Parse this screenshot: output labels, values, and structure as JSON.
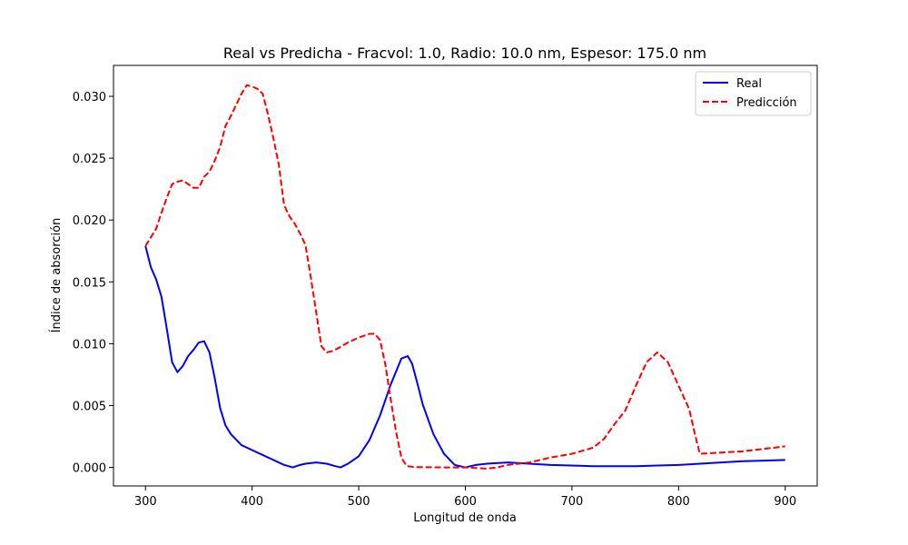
{
  "chart_data": {
    "type": "line",
    "title": "Real vs Predicha - Fracvol: 1.0, Radio: 10.0 nm, Espesor: 175.0 nm",
    "xlabel": "Longitud de onda",
    "ylabel": "Índice de absorción",
    "xlim": [
      270,
      930
    ],
    "ylim": [
      -0.0015,
      0.0325
    ],
    "xticks": [
      300,
      400,
      500,
      600,
      700,
      800,
      900
    ],
    "yticks": [
      0.0,
      0.005,
      0.01,
      0.015,
      0.02,
      0.025,
      0.03
    ],
    "xtick_labels": [
      "300",
      "400",
      "500",
      "600",
      "700",
      "800",
      "900"
    ],
    "ytick_labels": [
      "0.000",
      "0.005",
      "0.010",
      "0.015",
      "0.020",
      "0.025",
      "0.030"
    ],
    "legend_position": "top-right",
    "grid": false,
    "series": [
      {
        "name": "Real",
        "color": "#0000ff",
        "style": "solid",
        "x": [
          300,
          305,
          310,
          315,
          320,
          325,
          330,
          335,
          340,
          345,
          350,
          355,
          360,
          365,
          370,
          375,
          380,
          390,
          400,
          410,
          420,
          430,
          438,
          445,
          450,
          460,
          470,
          478,
          483,
          490,
          500,
          510,
          520,
          530,
          540,
          546,
          550,
          555,
          560,
          570,
          580,
          590,
          600,
          610,
          620,
          640,
          660,
          680,
          700,
          720,
          740,
          760,
          780,
          800,
          820,
          840,
          860,
          880,
          900
        ],
        "y": [
          0.0179,
          0.0162,
          0.0152,
          0.0138,
          0.0112,
          0.0085,
          0.0077,
          0.0082,
          0.009,
          0.0095,
          0.0101,
          0.0102,
          0.0093,
          0.0072,
          0.0048,
          0.0034,
          0.0027,
          0.0018,
          0.0014,
          0.001,
          0.0006,
          0.0002,
          0.0,
          0.0002,
          0.0003,
          0.0004,
          0.0003,
          0.0001,
          0.0,
          0.0003,
          0.0009,
          0.0022,
          0.0042,
          0.0067,
          0.0088,
          0.009,
          0.0084,
          0.0068,
          0.0051,
          0.0027,
          0.0011,
          0.0002,
          0.0,
          0.0002,
          0.0003,
          0.0004,
          0.0003,
          0.0002,
          0.00015,
          0.0001,
          0.0001,
          0.0001,
          0.00015,
          0.0002,
          0.0003,
          0.0004,
          0.0005,
          0.00055,
          0.0006
        ]
      },
      {
        "name": "Predicción",
        "color": "#ff0000",
        "style": "dashed",
        "x": [
          300,
          305,
          310,
          315,
          320,
          325,
          330,
          335,
          340,
          345,
          350,
          355,
          360,
          365,
          370,
          375,
          380,
          385,
          390,
          395,
          400,
          405,
          410,
          415,
          420,
          425,
          430,
          435,
          440,
          445,
          450,
          455,
          460,
          465,
          470,
          475,
          480,
          490,
          500,
          510,
          515,
          520,
          525,
          530,
          535,
          540,
          545,
          550,
          555,
          560,
          580,
          600,
          610,
          620,
          630,
          640,
          660,
          680,
          700,
          720,
          730,
          740,
          750,
          760,
          770,
          780,
          790,
          800,
          810,
          815,
          820,
          840,
          860,
          880,
          900
        ],
        "y": [
          0.0179,
          0.0186,
          0.0193,
          0.0206,
          0.0218,
          0.0229,
          0.0231,
          0.0232,
          0.0229,
          0.0226,
          0.0226,
          0.0235,
          0.0239,
          0.0248,
          0.0259,
          0.0276,
          0.0284,
          0.0293,
          0.0302,
          0.0309,
          0.0308,
          0.0306,
          0.0302,
          0.0285,
          0.0266,
          0.0245,
          0.0212,
          0.0203,
          0.0197,
          0.0189,
          0.018,
          0.0154,
          0.0126,
          0.0098,
          0.0093,
          0.0094,
          0.0096,
          0.0101,
          0.0105,
          0.0108,
          0.0108,
          0.0103,
          0.0083,
          0.0055,
          0.0029,
          0.0008,
          0.0001,
          5e-05,
          2e-05,
          2e-05,
          0.0,
          0.0,
          -5e-05,
          -0.0001,
          0.0,
          0.0002,
          0.0004,
          0.0008,
          0.0011,
          0.0016,
          0.0023,
          0.0035,
          0.0046,
          0.0066,
          0.0085,
          0.0093,
          0.0085,
          0.0066,
          0.0047,
          0.0028,
          0.0011,
          0.0012,
          0.0013,
          0.0015,
          0.0017
        ]
      }
    ]
  }
}
